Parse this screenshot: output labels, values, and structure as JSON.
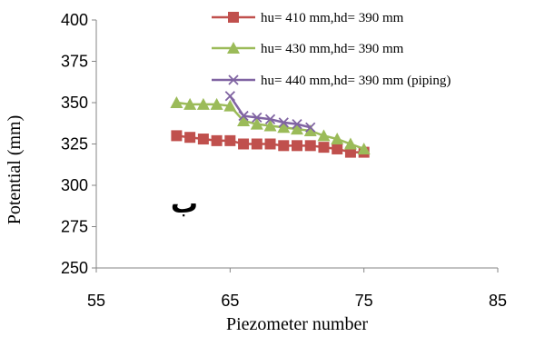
{
  "chart_data": {
    "type": "line",
    "xlabel": "Piezometer number",
    "ylabel": "Potential (mm)",
    "xlim": [
      55,
      85
    ],
    "ylim": [
      250,
      400
    ],
    "xticks": [
      55,
      65,
      75,
      85
    ],
    "yticks": [
      250,
      275,
      300,
      325,
      350,
      375,
      400
    ],
    "grid": false,
    "legend_position": "top-right",
    "annotation": "ب",
    "series": [
      {
        "name": "hu= 410 mm,hd= 390 mm",
        "color": "#c0504d",
        "marker": "square",
        "x": [
          61,
          62,
          63,
          64,
          65,
          66,
          67,
          68,
          69,
          70,
          71,
          72,
          73,
          74,
          75
        ],
        "y": [
          330,
          329,
          328,
          327,
          327,
          325,
          325,
          325,
          324,
          324,
          324,
          323,
          322,
          320,
          320
        ]
      },
      {
        "name": "hu= 430 mm,hd= 390 mm",
        "color": "#9bbb59",
        "marker": "triangle",
        "x": [
          61,
          62,
          63,
          64,
          65,
          66,
          67,
          68,
          69,
          70,
          71,
          72,
          73,
          74,
          75
        ],
        "y": [
          350,
          349,
          349,
          349,
          348,
          339,
          337,
          336,
          335,
          334,
          333,
          330,
          328,
          325,
          322
        ]
      },
      {
        "name": "hu= 440 mm,hd= 390 mm (piping)",
        "color": "#8064a2",
        "marker": "x",
        "x": [
          65,
          66,
          67,
          68,
          69,
          70,
          71
        ],
        "y": [
          354,
          342,
          341,
          340,
          338,
          337,
          335
        ]
      }
    ]
  }
}
